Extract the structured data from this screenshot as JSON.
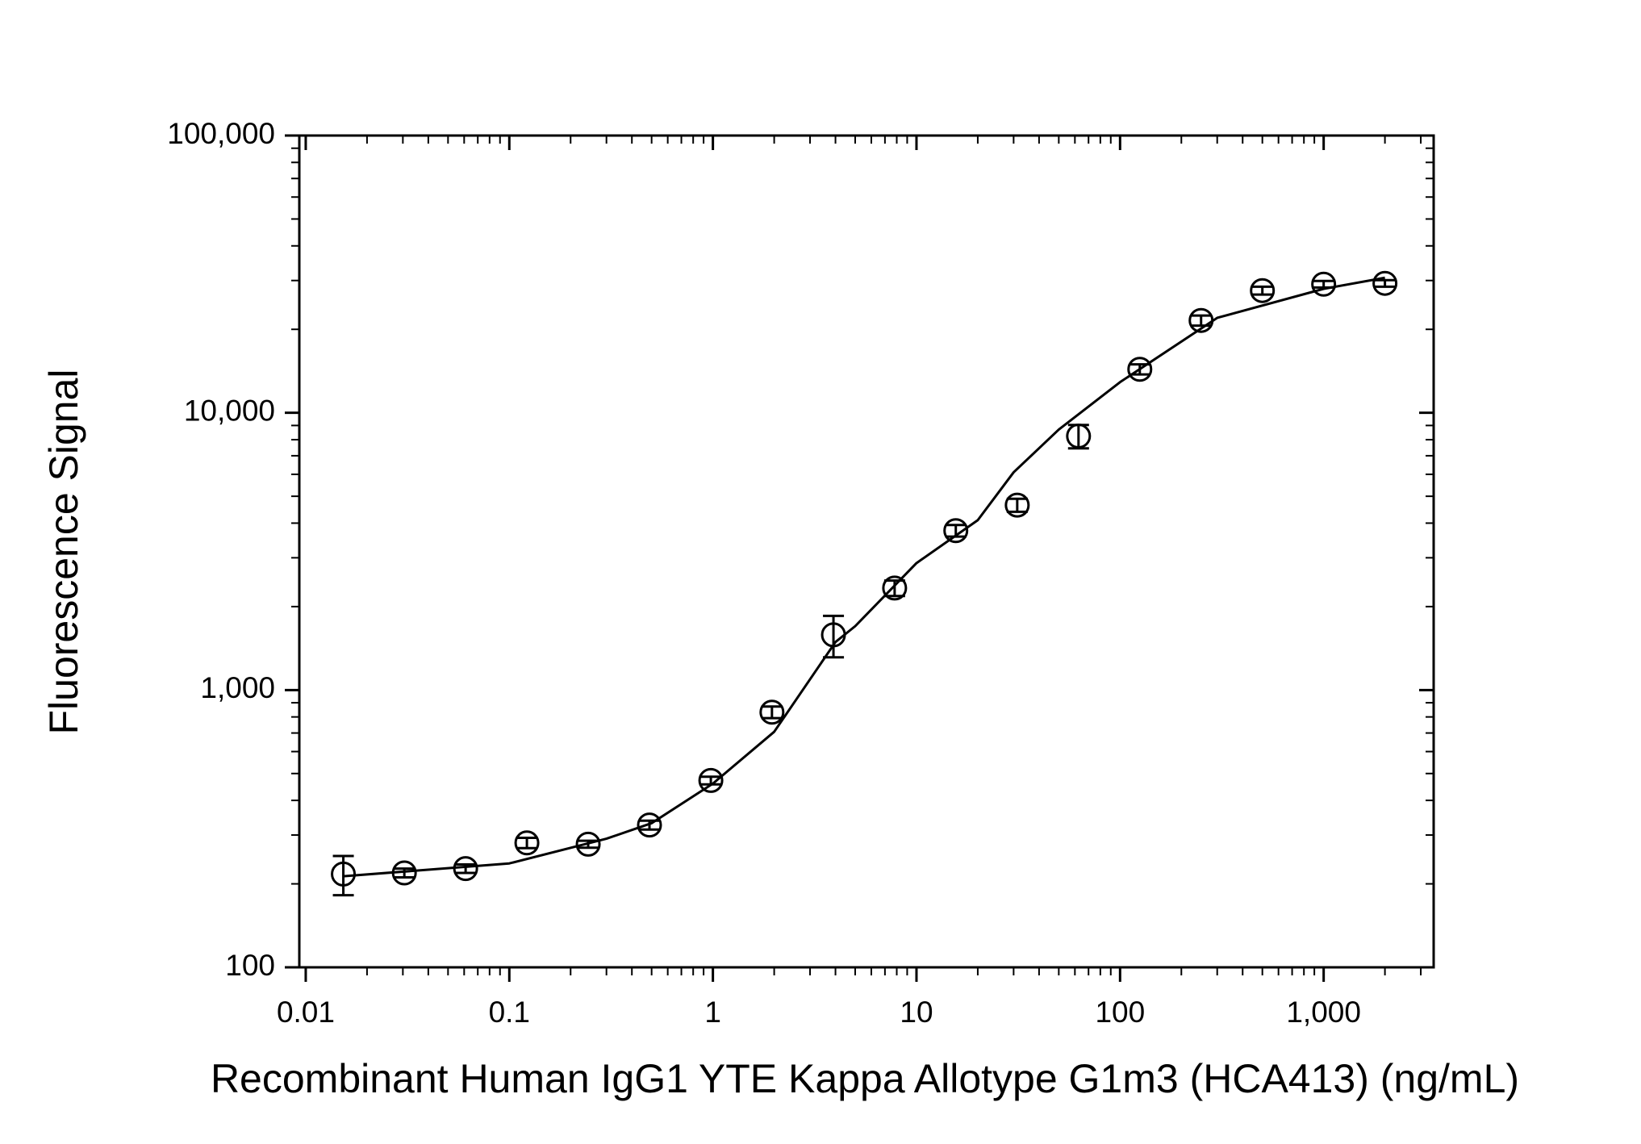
{
  "chart_data": {
    "type": "scatter",
    "x_label": "Recombinant Human IgG1 YTE Kappa Allotype G1m3 (HCA413) (ng/mL)",
    "y_label": "Fluorescence Signal",
    "x_log": true,
    "y_log": true,
    "xlim": [
      0.0093,
      3470
    ],
    "ylim": [
      100,
      100000
    ],
    "xticks": [
      0.01,
      0.1,
      1,
      10,
      100,
      {
        "value": 1000,
        "label": "1,000"
      }
    ],
    "yticks": [
      100,
      {
        "value": 1000,
        "label": "1,000"
      },
      {
        "value": 10000,
        "label": "10,000"
      },
      {
        "value": 100000,
        "label": "100,000"
      }
    ],
    "color": "#000000",
    "series": [
      {
        "x": [
          0.0153,
          0.0305,
          0.061,
          0.122,
          0.244,
          0.488,
          0.977,
          1.95,
          3.91,
          7.81,
          15.6,
          31.25,
          62.5,
          125,
          250,
          500,
          1000,
          2000
        ],
        "values": [
          217,
          219,
          227,
          281,
          278,
          326,
          472,
          832,
          1582,
          2333,
          3758,
          4645,
          8241,
          14350,
          21530,
          27590,
          29100,
          29300
        ],
        "errors": [
          35,
          8,
          8,
          12,
          8,
          12,
          15,
          40,
          270,
          150,
          180,
          250,
          800,
          600,
          900,
          900,
          800,
          800
        ]
      },
      {
        "x": [
          0.0153,
          0.1,
          0.3,
          0.5,
          1,
          2,
          4,
          5,
          10,
          20,
          30,
          50,
          100,
          300,
          1000,
          2000
        ],
        "values": [
          213,
          237,
          291,
          331,
          460,
          707,
          1490,
          1700,
          2870,
          4100,
          6100,
          8700,
          12900,
          22000,
          28000,
          30700
        ]
      }
    ]
  }
}
